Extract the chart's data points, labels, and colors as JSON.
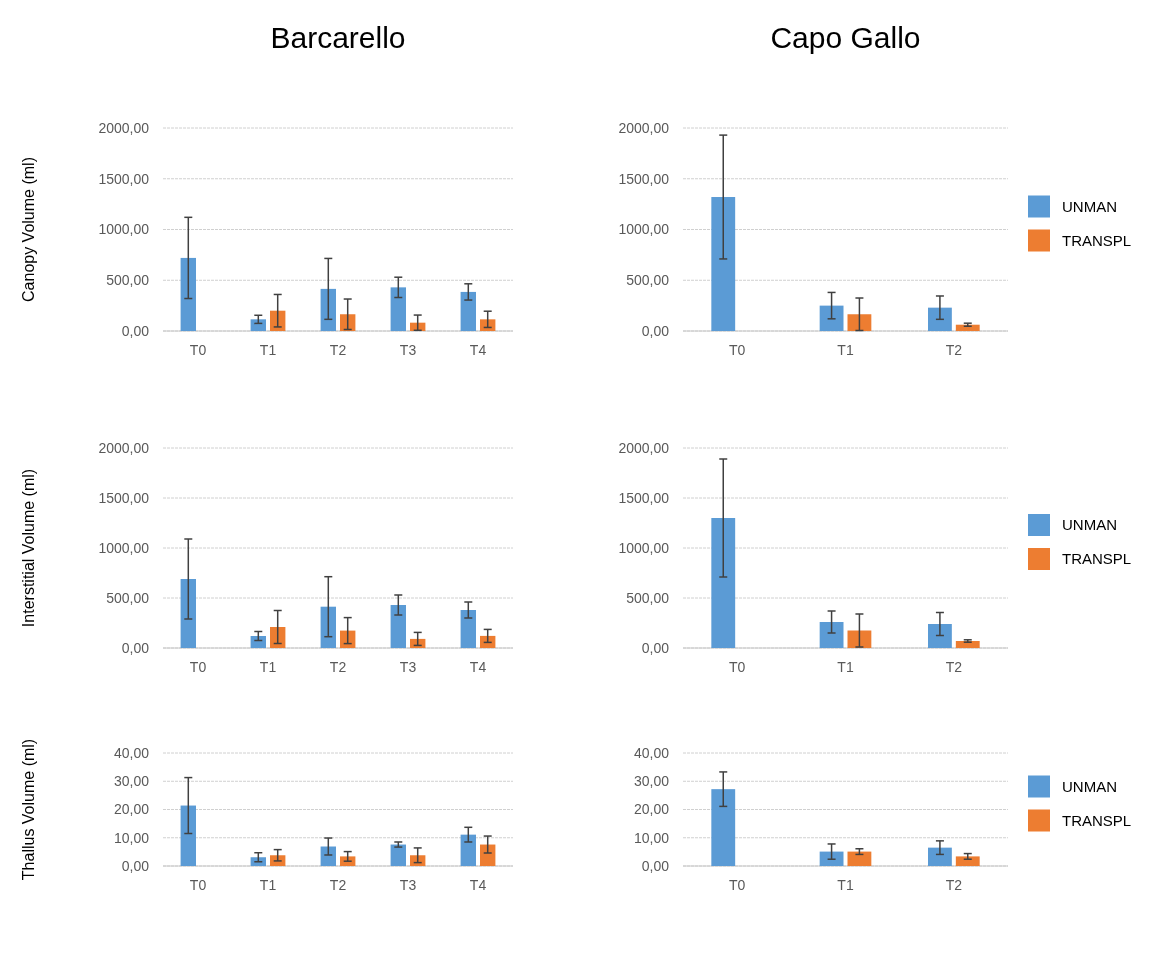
{
  "chart_data": [
    {
      "type": "bar",
      "title": "Barcarello",
      "ylabel": "Canopy Volume (ml)",
      "categories": [
        "T0",
        "T1",
        "T2",
        "T3",
        "T4"
      ],
      "ylim": [
        0,
        2000
      ],
      "yticks": [
        {
          "value": 0,
          "label": "0,00"
        },
        {
          "value": 500,
          "label": "500,00"
        },
        {
          "value": 1000,
          "label": "1000,00"
        },
        {
          "value": 1500,
          "label": "1500,00"
        },
        {
          "value": 2000,
          "label": "2000,00"
        }
      ],
      "grid": "y",
      "legend": false,
      "series": [
        {
          "color": "#5b9bd5",
          "values": [
            720,
            115,
            415,
            430,
            385
          ],
          "errors": [
            400,
            40,
            300,
            100,
            80
          ]
        },
        {
          "color": "#ed7d31",
          "values": [
            null,
            200,
            165,
            82,
            115
          ],
          "errors": [
            null,
            160,
            150,
            75,
            80
          ]
        }
      ]
    },
    {
      "type": "bar",
      "title": "Capo Gallo",
      "categories": [
        "T0",
        "T1",
        "T2"
      ],
      "ylim": [
        0,
        2000
      ],
      "yticks": [
        {
          "value": 0,
          "label": "0,00"
        },
        {
          "value": 500,
          "label": "500,00"
        },
        {
          "value": 1000,
          "label": "1000,00"
        },
        {
          "value": 1500,
          "label": "1500,00"
        },
        {
          "value": 2000,
          "label": "2000,00"
        }
      ],
      "grid": "y",
      "legend": "right",
      "series": [
        {
          "name": "UNMAN",
          "color": "#5b9bd5",
          "values": [
            1320,
            250,
            230
          ],
          "errors": [
            610,
            130,
            115
          ]
        },
        {
          "name": "TRANSPL",
          "color": "#ed7d31",
          "values": [
            null,
            165,
            62
          ],
          "errors": [
            null,
            160,
            15
          ]
        }
      ]
    },
    {
      "type": "bar",
      "ylabel": "Interstitial Volume (ml)",
      "categories": [
        "T0",
        "T1",
        "T2",
        "T3",
        "T4"
      ],
      "ylim": [
        0,
        2000
      ],
      "yticks": [
        {
          "value": 0,
          "label": "0,00"
        },
        {
          "value": 500,
          "label": "500,00"
        },
        {
          "value": 1000,
          "label": "1000,00"
        },
        {
          "value": 1500,
          "label": "1500,00"
        },
        {
          "value": 2000,
          "label": "2000,00"
        }
      ],
      "grid": "y",
      "legend": false,
      "series": [
        {
          "color": "#5b9bd5",
          "values": [
            690,
            120,
            413,
            430,
            380
          ],
          "errors": [
            400,
            45,
            300,
            100,
            80
          ]
        },
        {
          "color": "#ed7d31",
          "values": [
            null,
            210,
            174,
            91,
            121
          ],
          "errors": [
            null,
            165,
            130,
            65,
            65
          ]
        }
      ]
    },
    {
      "type": "bar",
      "categories": [
        "T0",
        "T1",
        "T2"
      ],
      "ylim": [
        0,
        2000
      ],
      "yticks": [
        {
          "value": 0,
          "label": "0,00"
        },
        {
          "value": 500,
          "label": "500,00"
        },
        {
          "value": 1000,
          "label": "1000,00"
        },
        {
          "value": 1500,
          "label": "1500,00"
        },
        {
          "value": 2000,
          "label": "2000,00"
        }
      ],
      "grid": "y",
      "legend": "right",
      "series": [
        {
          "name": "UNMAN",
          "color": "#5b9bd5",
          "values": [
            1300,
            260,
            240
          ],
          "errors": [
            590,
            110,
            115
          ]
        },
        {
          "name": "TRANSPL",
          "color": "#ed7d31",
          "values": [
            null,
            175,
            70
          ],
          "errors": [
            null,
            165,
            12
          ]
        }
      ]
    },
    {
      "type": "bar",
      "ylabel": "Thallus Volume (ml)",
      "categories": [
        "T0",
        "T1",
        "T2",
        "T3",
        "T4"
      ],
      "ylim": [
        0,
        40
      ],
      "yticks": [
        {
          "value": 0,
          "label": "0,00"
        },
        {
          "value": 10,
          "label": "10,00"
        },
        {
          "value": 20,
          "label": "20,00"
        },
        {
          "value": 30,
          "label": "30,00"
        },
        {
          "value": 40,
          "label": "40,00"
        }
      ],
      "grid": "y",
      "legend": false,
      "series": [
        {
          "color": "#5b9bd5",
          "values": [
            21.4,
            3.1,
            6.9,
            7.6,
            11.1
          ],
          "errors": [
            9.9,
            1.6,
            3,
            0.9,
            2.6
          ]
        },
        {
          "color": "#ed7d31",
          "values": [
            null,
            3.8,
            3.4,
            3.8,
            7.6
          ],
          "errors": [
            null,
            2,
            1.7,
            2.6,
            3
          ]
        }
      ]
    },
    {
      "type": "bar",
      "categories": [
        "T0",
        "T1",
        "T2"
      ],
      "ylim": [
        0,
        40
      ],
      "yticks": [
        {
          "value": 0,
          "label": "0,00"
        },
        {
          "value": 10,
          "label": "10,00"
        },
        {
          "value": 20,
          "label": "20,00"
        },
        {
          "value": 30,
          "label": "30,00"
        },
        {
          "value": 40,
          "label": "40,00"
        }
      ],
      "grid": "y",
      "legend": "right",
      "series": [
        {
          "name": "UNMAN",
          "color": "#5b9bd5",
          "values": [
            27.2,
            5.1,
            6.5
          ],
          "errors": [
            6.1,
            2.7,
            2.4
          ]
        },
        {
          "name": "TRANSPL",
          "color": "#ed7d31",
          "values": [
            null,
            5.1,
            3.4
          ],
          "errors": [
            null,
            1,
            1
          ]
        }
      ]
    }
  ]
}
